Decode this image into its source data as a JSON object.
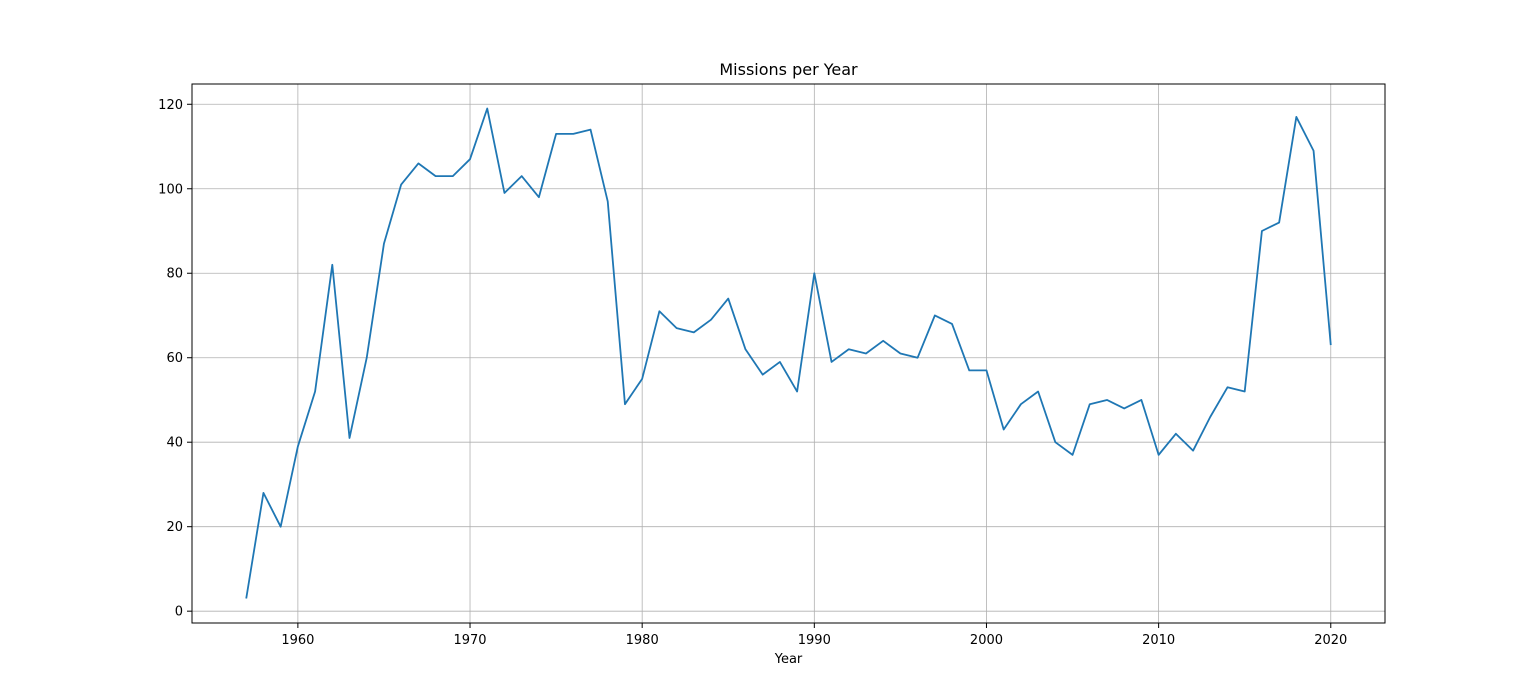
{
  "chart_data": {
    "type": "line",
    "title": "Missions per Year",
    "xlabel": "Year",
    "ylabel": "",
    "xlim": [
      1953.85,
      2023.15
    ],
    "ylim": [
      -2.8,
      124.8
    ],
    "xticks": [
      1960,
      1970,
      1980,
      1990,
      2000,
      2010,
      2020
    ],
    "yticks": [
      0,
      20,
      40,
      60,
      80,
      100,
      120
    ],
    "grid": true,
    "line_color": "#1f77b4",
    "series": [
      {
        "x": [
          1957,
          1958,
          1959,
          1960,
          1961,
          1962,
          1963,
          1964,
          1965,
          1966,
          1967,
          1968,
          1969,
          1970,
          1971,
          1972,
          1973,
          1974,
          1975,
          1976,
          1977,
          1978,
          1979,
          1980,
          1981,
          1982,
          1983,
          1984,
          1985,
          1986,
          1987,
          1988,
          1989,
          1990,
          1991,
          1992,
          1993,
          1994,
          1995,
          1996,
          1997,
          1998,
          1999,
          2000,
          2001,
          2002,
          2003,
          2004,
          2005,
          2006,
          2007,
          2008,
          2009,
          2010,
          2011,
          2012,
          2013,
          2014,
          2015,
          2016,
          2017,
          2018,
          2019,
          2020
        ],
        "values": [
          3,
          28,
          20,
          39,
          52,
          82,
          41,
          60,
          87,
          101,
          106,
          103,
          103,
          107,
          119,
          99,
          103,
          98,
          113,
          113,
          114,
          97,
          49,
          55,
          71,
          67,
          66,
          69,
          74,
          62,
          56,
          59,
          52,
          80,
          59,
          62,
          61,
          64,
          61,
          60,
          70,
          68,
          57,
          57,
          43,
          49,
          52,
          40,
          37,
          49,
          50,
          48,
          50,
          37,
          42,
          38,
          46,
          53,
          52,
          90,
          92,
          117,
          109,
          63
        ]
      }
    ]
  }
}
